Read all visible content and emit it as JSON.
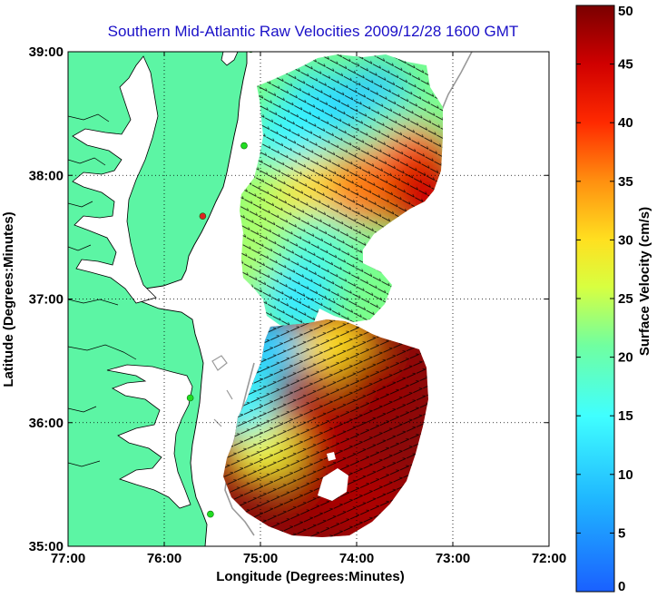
{
  "title": "Southern Mid-Atlantic Raw Velocities 2009/12/28 1600 GMT",
  "colors": {
    "land": "#5cf5a4",
    "water": "#ffffff",
    "coastline": "#000000",
    "bathymetry": "#9a9a9a",
    "title": "#1a10c8",
    "station": "#22dd22",
    "station_offline": "#dd2222"
  },
  "chart_data": {
    "type": "heatmap",
    "xlabel": "Longitude (Degrees:Minutes)",
    "ylabel": "Latitude (Degrees:Minutes)",
    "xlim": [
      -77,
      -72
    ],
    "ylim": [
      35,
      39
    ],
    "x_ticks": [
      {
        "value": -77,
        "label": "77:00"
      },
      {
        "value": -76,
        "label": "76:00"
      },
      {
        "value": -75,
        "label": "75:00"
      },
      {
        "value": -74,
        "label": "74:00"
      },
      {
        "value": -73,
        "label": "73:00"
      },
      {
        "value": -72,
        "label": "72:00"
      }
    ],
    "y_ticks": [
      {
        "value": 35,
        "label": "35:00"
      },
      {
        "value": 36,
        "label": "36:00"
      },
      {
        "value": 37,
        "label": "37:00"
      },
      {
        "value": 38,
        "label": "38:00"
      },
      {
        "value": 39,
        "label": "39:00"
      }
    ],
    "grid": true,
    "colorbar": {
      "label": "Surface Velocity (cm/s)",
      "min": 0,
      "max": 50,
      "ticks": [
        {
          "value": 0,
          "label": "0"
        },
        {
          "value": 5,
          "label": "5"
        },
        {
          "value": 10,
          "label": "10"
        },
        {
          "value": 15,
          "label": "15"
        },
        {
          "value": 20,
          "label": "20"
        },
        {
          "value": 25,
          "label": "25"
        },
        {
          "value": 30,
          "label": "30"
        },
        {
          "value": 35,
          "label": "35"
        },
        {
          "value": 40,
          "label": "40"
        },
        {
          "value": 45,
          "label": "45"
        },
        {
          "value": 50,
          "label": "50"
        }
      ]
    },
    "velocity_regions": [
      {
        "lon": -74.4,
        "lat": 38.55,
        "speed": 12
      },
      {
        "lon": -73.8,
        "lat": 38.6,
        "speed": 10
      },
      {
        "lon": -73.6,
        "lat": 38.3,
        "speed": 20
      },
      {
        "lon": -74.7,
        "lat": 38.3,
        "speed": 14
      },
      {
        "lon": -74.9,
        "lat": 37.8,
        "speed": 24
      },
      {
        "lon": -74.4,
        "lat": 37.85,
        "speed": 30
      },
      {
        "lon": -73.9,
        "lat": 37.9,
        "speed": 36
      },
      {
        "lon": -73.4,
        "lat": 38.1,
        "speed": 38
      },
      {
        "lon": -73.3,
        "lat": 37.85,
        "speed": 45
      },
      {
        "lon": -75.0,
        "lat": 37.3,
        "speed": 24
      },
      {
        "lon": -74.4,
        "lat": 37.4,
        "speed": 18
      },
      {
        "lon": -74.6,
        "lat": 37.0,
        "speed": 13
      },
      {
        "lon": -74.9,
        "lat": 36.6,
        "speed": 10
      },
      {
        "lon": -74.2,
        "lat": 36.6,
        "speed": 30
      },
      {
        "lon": -73.8,
        "lat": 36.3,
        "speed": 48
      },
      {
        "lon": -74.5,
        "lat": 35.9,
        "speed": 46
      },
      {
        "lon": -75.0,
        "lat": 35.8,
        "speed": 28
      },
      {
        "lon": -75.2,
        "lat": 36.2,
        "speed": 14
      },
      {
        "lon": -74.4,
        "lat": 35.4,
        "speed": 48
      },
      {
        "lon": -73.9,
        "lat": 35.4,
        "speed": 47
      }
    ],
    "vector_direction_deg": 120,
    "stations": [
      {
        "lon": -75.1,
        "lat": 39.02,
        "status": "online"
      },
      {
        "lon": -75.17,
        "lat": 38.24,
        "status": "online"
      },
      {
        "lon": -75.6,
        "lat": 37.67,
        "status": "offline"
      },
      {
        "lon": -75.73,
        "lat": 36.2,
        "status": "online"
      },
      {
        "lon": -75.52,
        "lat": 35.26,
        "status": "online"
      }
    ]
  }
}
